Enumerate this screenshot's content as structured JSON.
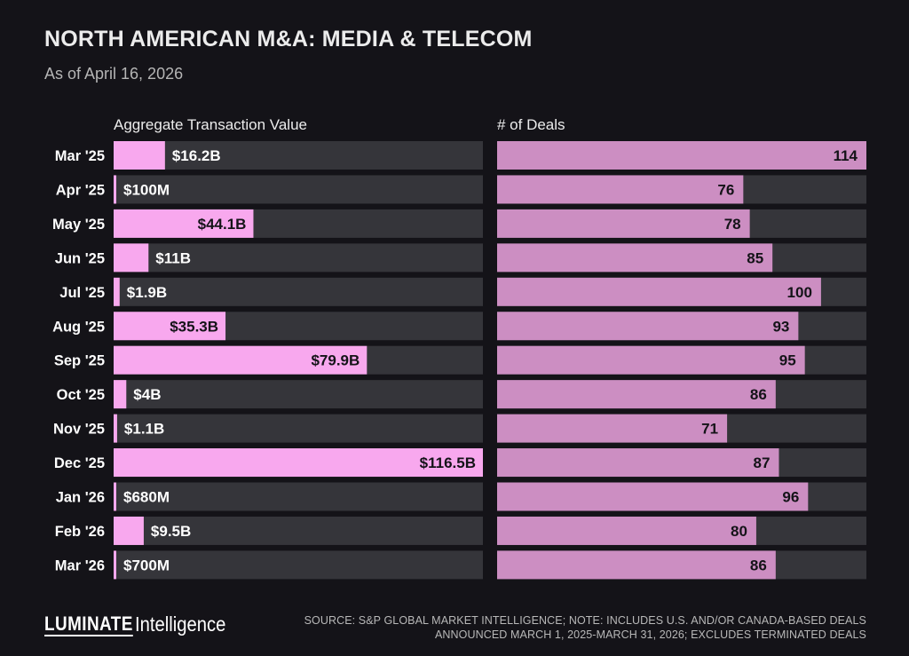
{
  "title": "NORTH AMERICAN M&A: MEDIA & TELECOM",
  "subtitle": "As of April 16, 2026",
  "colors": {
    "background": "#141318",
    "track": "#35353a",
    "value_bar": "#f8a8ee",
    "deals_bar": "#cc8ec2",
    "text_dark": "#141318",
    "text_light": "#ffffff"
  },
  "chart_data": [
    {
      "type": "bar",
      "orientation": "horizontal",
      "title": "Aggregate Transaction Value",
      "unit": "USD billions",
      "categories": [
        "Mar '25",
        "Apr '25",
        "May '25",
        "Jun '25",
        "Jul '25",
        "Aug '25",
        "Sep '25",
        "Oct '25",
        "Nov '25",
        "Dec '25",
        "Jan '26",
        "Feb '26",
        "Mar '26"
      ],
      "values": [
        16.2,
        0.1,
        44.1,
        11,
        1.9,
        35.3,
        79.9,
        4,
        1.1,
        116.5,
        0.68,
        9.5,
        0.7
      ],
      "labels": [
        "$16.2B",
        "$100M",
        "$44.1B",
        "$11B",
        "$1.9B",
        "$35.3B",
        "$79.9B",
        "$4B",
        "$1.1B",
        "$116.5B",
        "$680M",
        "$9.5B",
        "$700M"
      ],
      "xlim": [
        0,
        116.5
      ]
    },
    {
      "type": "bar",
      "orientation": "horizontal",
      "title": "# of Deals",
      "categories": [
        "Mar '25",
        "Apr '25",
        "May '25",
        "Jun '25",
        "Jul '25",
        "Aug '25",
        "Sep '25",
        "Oct '25",
        "Nov '25",
        "Dec '25",
        "Jan '26",
        "Feb '26",
        "Mar '26"
      ],
      "values": [
        114,
        76,
        78,
        85,
        100,
        93,
        95,
        86,
        71,
        87,
        96,
        80,
        86
      ],
      "xlim": [
        0,
        114
      ]
    }
  ],
  "footer": {
    "logo_word": "LUMINATE",
    "logo_sub": "Intelligence",
    "source_line1": "SOURCE: S&P GLOBAL MARKET INTELLIGENCE; NOTE: INCLUDES U.S. AND/OR CANADA-BASED DEALS",
    "source_line2": "ANNOUNCED MARCH 1, 2025-MARCH 31, 2026; EXCLUDES TERMINATED DEALS"
  }
}
